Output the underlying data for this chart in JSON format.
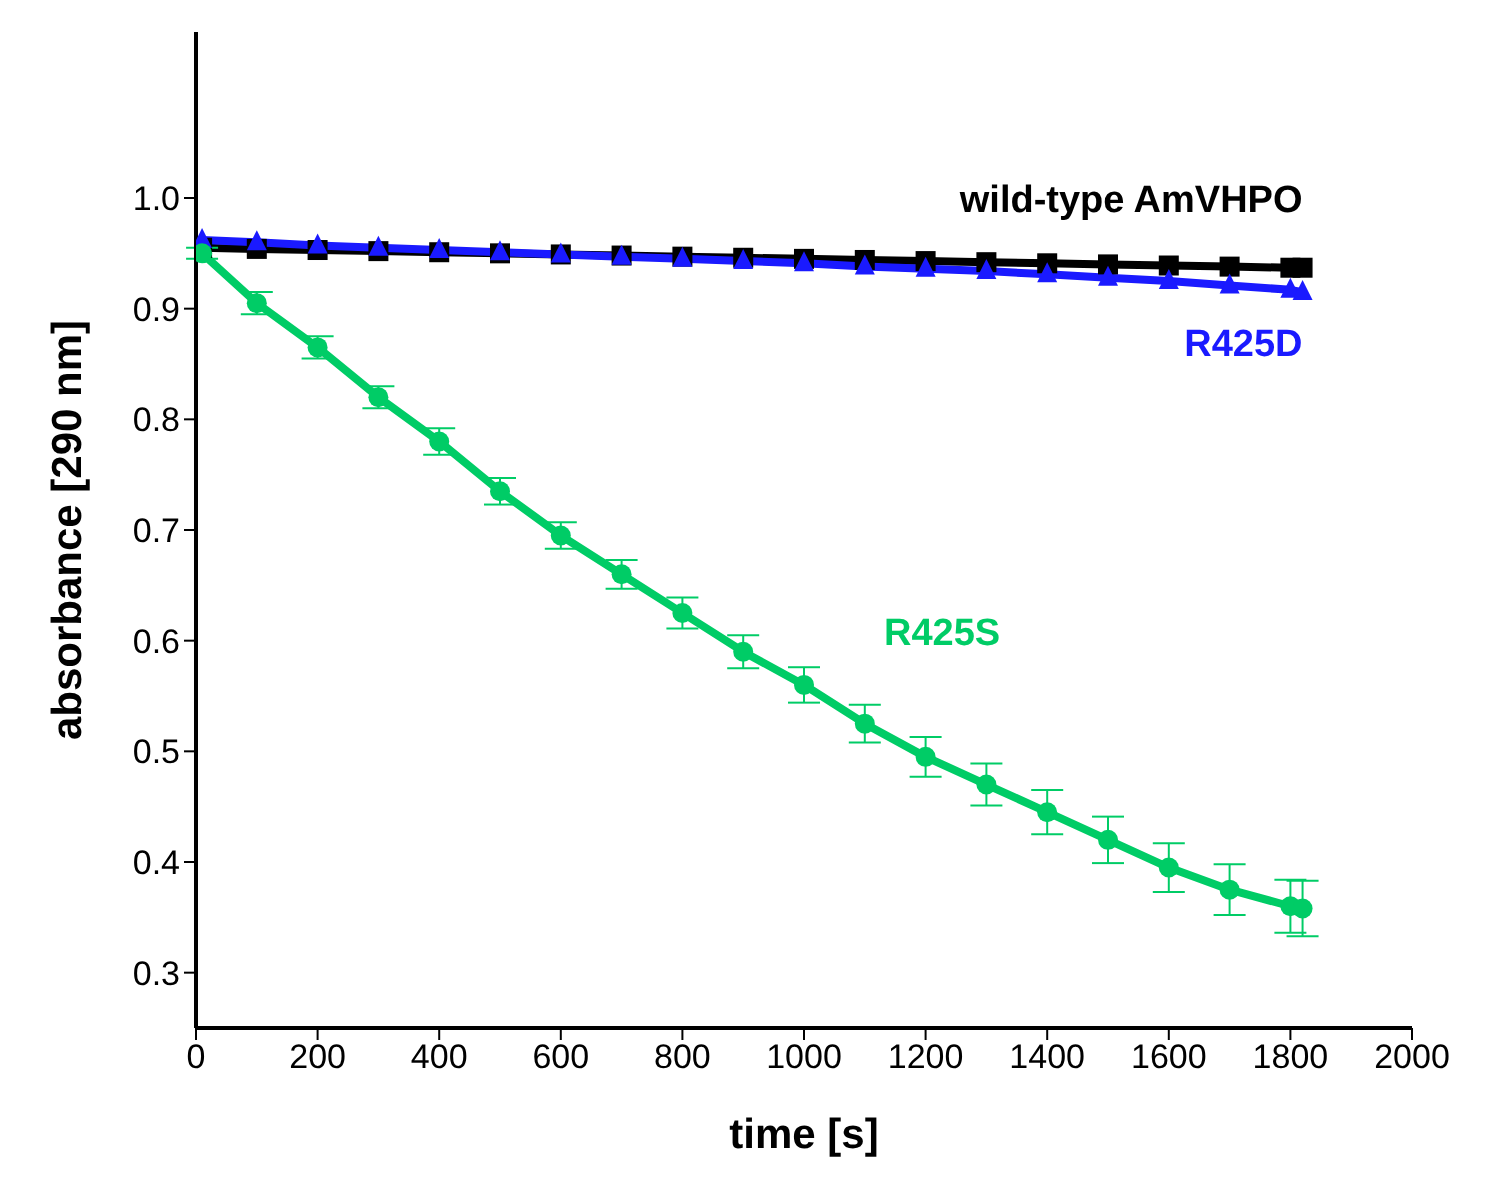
{
  "chart_data": {
    "type": "line",
    "xlabel": "time [s]",
    "ylabel": "absorbance [290 nm]",
    "x": [
      10,
      100,
      200,
      300,
      400,
      500,
      600,
      700,
      800,
      900,
      1000,
      1100,
      1200,
      1300,
      1400,
      1500,
      1600,
      1700,
      1800,
      1820
    ],
    "series": [
      {
        "name": "wild-type AmVHPO",
        "color": "#000000",
        "marker": "square",
        "values": [
          0.955,
          0.954,
          0.953,
          0.952,
          0.951,
          0.95,
          0.949,
          0.948,
          0.947,
          0.946,
          0.945,
          0.944,
          0.943,
          0.942,
          0.941,
          0.94,
          0.939,
          0.938,
          0.937,
          0.937
        ]
      },
      {
        "name": "R425D",
        "color": "#1a1aff",
        "marker": "triangle",
        "values": [
          0.962,
          0.96,
          0.957,
          0.955,
          0.953,
          0.951,
          0.949,
          0.947,
          0.945,
          0.943,
          0.941,
          0.938,
          0.936,
          0.934,
          0.931,
          0.928,
          0.925,
          0.921,
          0.917,
          0.915
        ]
      },
      {
        "name": "R425S",
        "color": "#00cc66",
        "marker": "circle",
        "values": [
          0.95,
          0.905,
          0.865,
          0.82,
          0.78,
          0.735,
          0.695,
          0.66,
          0.625,
          0.59,
          0.56,
          0.525,
          0.495,
          0.47,
          0.445,
          0.42,
          0.395,
          0.375,
          0.36,
          0.358
        ],
        "errors": [
          0.005,
          0.01,
          0.01,
          0.01,
          0.012,
          0.012,
          0.012,
          0.013,
          0.014,
          0.015,
          0.016,
          0.017,
          0.018,
          0.019,
          0.02,
          0.021,
          0.022,
          0.023,
          0.024,
          0.025
        ]
      }
    ],
    "xlim": [
      0,
      2000
    ],
    "xticks": [
      0,
      200,
      400,
      600,
      800,
      1000,
      1200,
      1400,
      1600,
      1800,
      2000
    ],
    "ylim": [
      0.25,
      1.15
    ],
    "yticks": [
      0.3,
      0.4,
      0.5,
      0.6,
      0.7,
      0.8,
      0.9,
      {
        "value": 1,
        "label": "1.0"
      }
    ],
    "grid": false,
    "legend": false
  }
}
